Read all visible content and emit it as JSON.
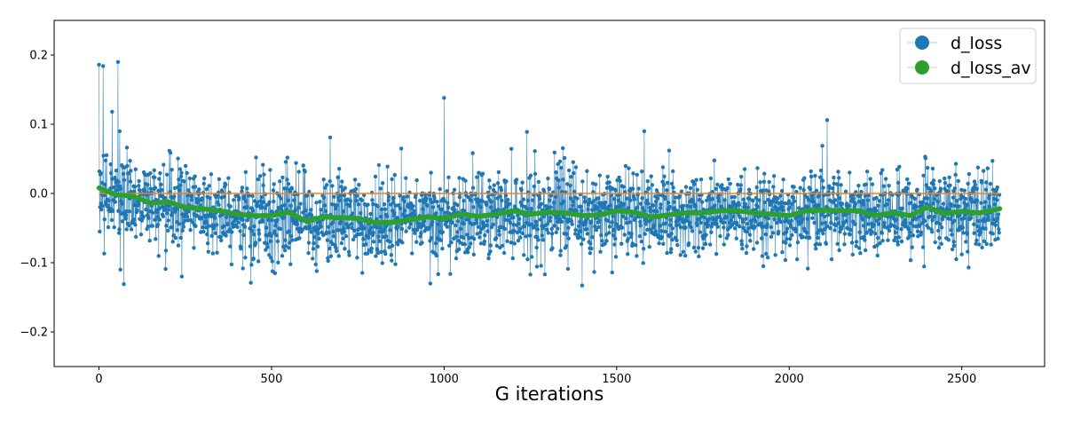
{
  "chart_data": {
    "type": "line",
    "xlabel": "G iterations",
    "ylabel": "",
    "xlim": [
      -130,
      2740
    ],
    "ylim": [
      -0.25,
      0.25
    ],
    "xticks": [
      0,
      500,
      1000,
      1500,
      2000,
      2500
    ],
    "xtick_labels": [
      "0",
      "500",
      "1000",
      "1500",
      "2000",
      "2500"
    ],
    "yticks": [
      0.2,
      0.1,
      0.0,
      -0.1,
      -0.2
    ],
    "ytick_labels": [
      "0.2",
      "0.1",
      "0.0",
      "−0.1",
      "−0.2"
    ],
    "grid": false,
    "legend_position": "top-right",
    "series": [
      {
        "name": "d_loss",
        "color": "#1f77b4",
        "style": "thin line with circle markers",
        "n_points": 2610,
        "x_range": [
          0,
          2610
        ],
        "typical_range": [
          -0.1,
          0.04
        ],
        "notable_points": [
          {
            "x": 0,
            "y": 0.186
          },
          {
            "x": 12,
            "y": 0.184
          },
          {
            "x": 38,
            "y": 0.118
          },
          {
            "x": 55,
            "y": 0.19
          },
          {
            "x": 60,
            "y": 0.09
          },
          {
            "x": 62,
            "y": -0.11
          },
          {
            "x": 72,
            "y": -0.131
          },
          {
            "x": 240,
            "y": -0.12
          },
          {
            "x": 440,
            "y": -0.129
          },
          {
            "x": 670,
            "y": 0.081
          },
          {
            "x": 1000,
            "y": 0.138
          },
          {
            "x": 960,
            "y": -0.13
          },
          {
            "x": 1240,
            "y": 0.089
          },
          {
            "x": 1400,
            "y": -0.133
          },
          {
            "x": 1580,
            "y": 0.09
          },
          {
            "x": 2110,
            "y": 0.106
          },
          {
            "x": 2520,
            "y": -0.107
          }
        ]
      },
      {
        "name": "d_loss_av",
        "color": "#2ca02c",
        "style": "thick line",
        "x": [
          0,
          50,
          100,
          150,
          200,
          250,
          300,
          350,
          400,
          450,
          500,
          550,
          600,
          650,
          700,
          750,
          800,
          850,
          900,
          950,
          1000,
          1050,
          1100,
          1150,
          1200,
          1250,
          1300,
          1350,
          1400,
          1450,
          1500,
          1550,
          1600,
          1650,
          1700,
          1750,
          1800,
          1850,
          1900,
          1950,
          2000,
          2050,
          2100,
          2150,
          2200,
          2250,
          2300,
          2350,
          2400,
          2450,
          2500,
          2550,
          2610
        ],
        "y": [
          0.008,
          -0.002,
          -0.004,
          -0.014,
          -0.012,
          -0.02,
          -0.022,
          -0.025,
          -0.03,
          -0.032,
          -0.032,
          -0.027,
          -0.04,
          -0.034,
          -0.035,
          -0.036,
          -0.042,
          -0.042,
          -0.038,
          -0.034,
          -0.036,
          -0.03,
          -0.033,
          -0.03,
          -0.025,
          -0.03,
          -0.027,
          -0.028,
          -0.032,
          -0.031,
          -0.025,
          -0.027,
          -0.034,
          -0.031,
          -0.028,
          -0.028,
          -0.025,
          -0.025,
          -0.028,
          -0.03,
          -0.032,
          -0.025,
          -0.024,
          -0.025,
          -0.025,
          -0.032,
          -0.028,
          -0.032,
          -0.02,
          -0.029,
          -0.026,
          -0.028,
          -0.022
        ]
      },
      {
        "name": "",
        "color": "#ff7f0e",
        "style": "thin line",
        "x": [
          0,
          2610
        ],
        "y": [
          0.0,
          0.0
        ]
      }
    ],
    "legend": [
      {
        "label": "d_loss",
        "color": "#1f77b4"
      },
      {
        "label": "d_loss_av",
        "color": "#2ca02c"
      }
    ]
  }
}
